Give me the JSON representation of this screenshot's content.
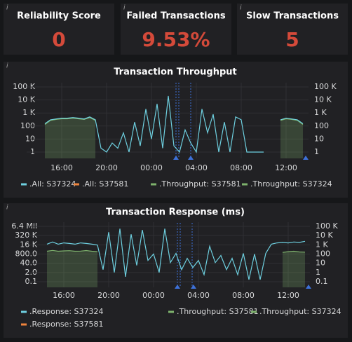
{
  "stats": [
    {
      "title": "Reliability Score",
      "value": "0"
    },
    {
      "title": "Failed Transactions",
      "value": "9.53%"
    },
    {
      "title": "Slow Transactions",
      "value": "5"
    }
  ],
  "chart_data": [
    {
      "type": "line",
      "title": "Transaction Throughput",
      "log_scale": true,
      "grid": true,
      "categories": [
        null,
        null,
        null,
        null,
        null,
        null,
        "16:00",
        null,
        null,
        null,
        null,
        null,
        null,
        null,
        "20:00",
        null,
        null,
        null,
        null,
        null,
        null,
        null,
        "00:00",
        null,
        null,
        null,
        null,
        null,
        null,
        null,
        "04:00",
        null,
        null,
        null,
        null,
        null,
        null,
        null,
        "08:00",
        null,
        null,
        null,
        null,
        null,
        null,
        null,
        "12:00",
        null,
        null,
        null
      ],
      "ylim": [
        1,
        100000
      ],
      "yticks": [
        1,
        10,
        100,
        {
          "value": 1000,
          "label": "1 K"
        },
        {
          "value": 10000,
          "label": "10 K"
        },
        {
          "value": 100000,
          "label": "100 K"
        }
      ],
      "y2lim": [
        1,
        100000
      ],
      "y2ticks": [
        1,
        10,
        100,
        {
          "value": 1000,
          "label": "1 K"
        },
        {
          "value": 10000,
          "label": "10 K"
        },
        {
          "value": 100000,
          "label": "100 K"
        }
      ],
      "series": [
        {
          "name": ".All: S37324",
          "color": "#6ed0e0",
          "values": [
            null,
            null,
            null,
            150,
            300,
            350,
            400,
            400,
            450,
            400,
            350,
            500,
            300,
            2,
            1,
            5,
            2,
            30,
            1,
            200,
            3,
            2000,
            10,
            5000,
            2,
            20000,
            3,
            1,
            50,
            5,
            1,
            2000,
            30,
            800,
            1,
            200,
            1,
            500,
            300,
            1,
            1,
            1,
            1,
            null,
            null,
            300,
            400,
            350,
            300,
            150
          ]
        },
        {
          "name": ".All: S37581",
          "color": "#ef843c",
          "values": [
            null,
            null,
            null,
            null,
            null,
            null,
            null,
            null,
            null,
            null,
            null,
            null,
            null,
            null,
            null,
            null,
            null,
            null,
            null,
            null,
            null,
            null,
            null,
            null,
            null,
            null,
            null,
            null,
            null,
            null,
            null,
            null,
            null,
            null,
            null,
            null,
            null,
            null,
            null,
            null,
            null,
            null,
            null,
            null,
            null,
            null,
            null,
            null,
            null,
            null
          ]
        },
        {
          "name": ".Throughput: S37581",
          "color": "#7eb26d",
          "axis": "y2",
          "area": true,
          "values": [
            null,
            null,
            null,
            null,
            null,
            null,
            null,
            null,
            null,
            null,
            null,
            null,
            null,
            null,
            null,
            null,
            null,
            null,
            null,
            null,
            null,
            null,
            null,
            null,
            null,
            null,
            null,
            null,
            null,
            null,
            null,
            null,
            null,
            null,
            null,
            null,
            null,
            null,
            null,
            null,
            null,
            null,
            null,
            null,
            null,
            null,
            null,
            null,
            null,
            null
          ]
        },
        {
          "name": ".Throughput: S37324",
          "color": "#7eb26d",
          "axis": "y2",
          "area": true,
          "values": [
            null,
            null,
            null,
            130,
            270,
            320,
            360,
            360,
            400,
            360,
            320,
            450,
            270,
            null,
            null,
            null,
            null,
            null,
            null,
            null,
            null,
            null,
            null,
            null,
            null,
            null,
            null,
            null,
            null,
            null,
            null,
            null,
            null,
            null,
            null,
            null,
            null,
            null,
            null,
            null,
            null,
            null,
            null,
            null,
            null,
            270,
            360,
            320,
            270,
            130
          ]
        }
      ]
    },
    {
      "type": "line",
      "title": "Transaction Response (ms)",
      "log_scale": true,
      "grid": true,
      "categories": [
        null,
        null,
        null,
        null,
        null,
        null,
        "16:00",
        null,
        null,
        null,
        null,
        null,
        null,
        null,
        "20:00",
        null,
        null,
        null,
        null,
        null,
        null,
        null,
        "00:00",
        null,
        null,
        null,
        null,
        null,
        null,
        null,
        "04:00",
        null,
        null,
        null,
        null,
        null,
        null,
        null,
        "08:00",
        null,
        null,
        null,
        null,
        null,
        null,
        null,
        "12:00",
        null,
        null,
        null
      ],
      "ylim": [
        0.1,
        6400000
      ],
      "yticks": [
        0.1,
        {
          "value": 2,
          "label": "2.0"
        },
        {
          "value": 40,
          "label": "40.0"
        },
        {
          "value": 800,
          "label": "800.0"
        },
        {
          "value": 16000,
          "label": "16 K"
        },
        {
          "value": 320000,
          "label": "320 K"
        },
        {
          "value": 6400000,
          "label": "6.4 Mil"
        }
      ],
      "y2lim": [
        0.1,
        100000
      ],
      "y2ticks": [
        0.1,
        1,
        10,
        100,
        {
          "value": 1000,
          "label": "1 K"
        },
        {
          "value": 10000,
          "label": "10 K"
        },
        {
          "value": 100000,
          "label": "100 K"
        }
      ],
      "series": [
        {
          "name": ".Response: S37324",
          "color": "#6ed0e0",
          "values": [
            null,
            null,
            null,
            20000,
            40000,
            20000,
            30000,
            25000,
            20000,
            30000,
            25000,
            20000,
            15000,
            5,
            1000000,
            2,
            3000000,
            0.5,
            500000,
            20,
            2000000,
            100,
            800,
            2,
            3000000,
            50,
            1000,
            5,
            200,
            10,
            100,
            1,
            10000,
            50,
            500,
            5,
            200,
            1,
            1000,
            0.2,
            800,
            0.2,
            1000,
            20000,
            30000,
            35000,
            30000,
            40000,
            35000,
            50000
          ]
        },
        {
          "name": ".Response: S37581",
          "color": "#ef843c",
          "values": [
            null,
            null,
            null,
            null,
            null,
            null,
            null,
            null,
            null,
            null,
            null,
            null,
            null,
            null,
            null,
            null,
            null,
            null,
            null,
            null,
            null,
            null,
            null,
            null,
            null,
            null,
            null,
            null,
            null,
            null,
            null,
            null,
            null,
            null,
            null,
            null,
            null,
            null,
            null,
            null,
            null,
            null,
            null,
            null,
            null,
            null,
            null,
            null,
            null,
            null
          ]
        },
        {
          "name": ".Throughput: S37581",
          "color": "#7eb26d",
          "axis": "y2",
          "area": true,
          "values": [
            null,
            null,
            null,
            null,
            null,
            null,
            null,
            null,
            null,
            null,
            null,
            null,
            null,
            null,
            null,
            null,
            null,
            null,
            null,
            null,
            null,
            null,
            null,
            null,
            null,
            null,
            null,
            null,
            null,
            null,
            null,
            null,
            null,
            null,
            null,
            null,
            null,
            null,
            null,
            null,
            null,
            null,
            null,
            null,
            null,
            null,
            null,
            null,
            null,
            null
          ]
        },
        {
          "name": ".Throughput: S37324",
          "color": "#7eb26d",
          "axis": "y2",
          "area": true,
          "values": [
            null,
            null,
            null,
            200,
            250,
            200,
            220,
            230,
            200,
            210,
            240,
            200,
            180,
            null,
            null,
            null,
            null,
            null,
            null,
            null,
            null,
            null,
            null,
            null,
            null,
            null,
            null,
            null,
            null,
            null,
            null,
            null,
            null,
            null,
            null,
            null,
            null,
            null,
            null,
            null,
            null,
            null,
            null,
            null,
            null,
            150,
            180,
            200,
            170,
            160
          ]
        }
      ]
    }
  ]
}
